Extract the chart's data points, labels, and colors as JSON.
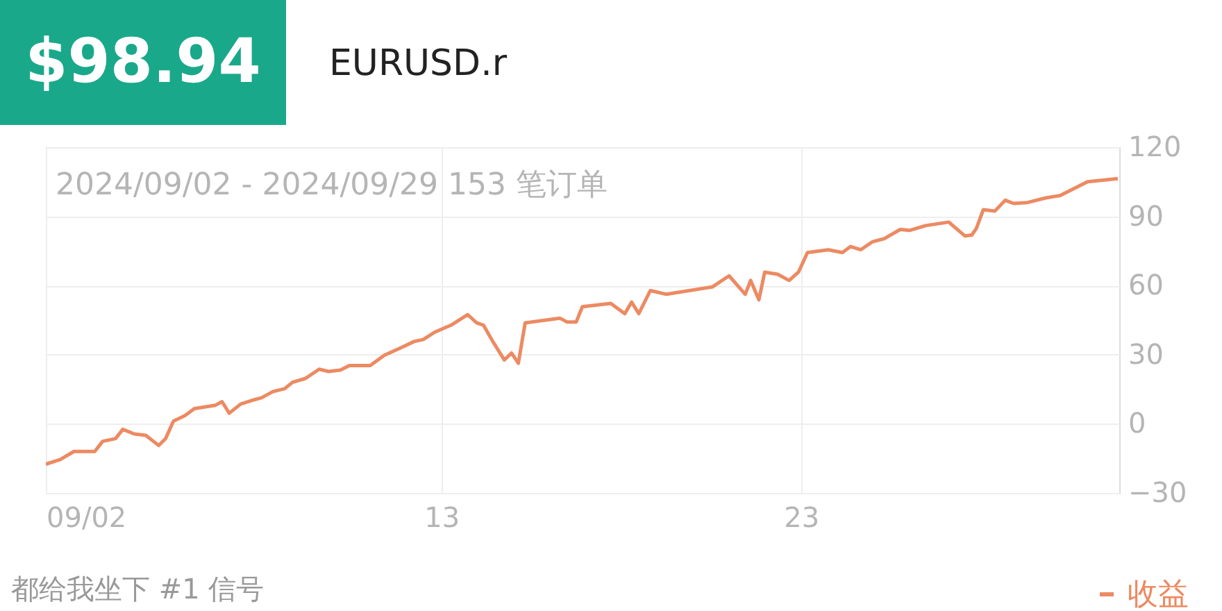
{
  "chart_data": {
    "type": "line",
    "title": "EURUSD.r",
    "annotations": [
      "$98.94",
      "2024/09/02 - 2024/09/29 153 笔订单",
      "都给我坐下 #1 信号"
    ],
    "x": [
      2.0,
      2.4,
      2.78,
      3.36,
      3.58,
      3.94,
      4.14,
      4.46,
      4.78,
      5.14,
      5.33,
      5.55,
      5.87,
      6.13,
      6.71,
      6.9,
      7.1,
      7.42,
      7.74,
      8.0,
      8.32,
      8.64,
      8.86,
      9.22,
      9.6,
      9.86,
      10.19,
      10.44,
      10.7,
      11.02,
      11.41,
      11.92,
      12.24,
      12.5,
      12.82,
      13.27,
      13.73,
      13.98,
      14.17,
      14.43,
      14.75,
      14.95,
      15.14,
      15.33,
      16.3,
      16.49,
      16.75,
      16.92,
      17.71,
      18.1,
      18.29,
      18.49,
      18.81,
      19.26,
      20.54,
      21.0,
      21.45,
      21.6,
      21.83,
      21.99,
      22.35,
      22.67,
      22.93,
      23.18,
      23.76,
      24.15,
      24.38,
      24.66,
      24.98,
      25.31,
      25.76,
      26.02,
      26.47,
      27.11,
      27.56,
      27.75,
      27.88,
      28.07,
      28.39,
      28.68,
      28.91,
      29.3,
      29.81,
      30.2,
      30.97,
      31.81
    ],
    "series": [
      {
        "name": "收益",
        "color": "#ec8a62",
        "values": [
          -17.5,
          -15.5,
          -12,
          -12,
          -7.6,
          -6.4,
          -2.4,
          -4.4,
          -5,
          -9.4,
          -6.4,
          1.2,
          3.6,
          6.6,
          8,
          9.6,
          4.6,
          8.6,
          10.2,
          11.3,
          14,
          15.2,
          18,
          19.7,
          23.7,
          22.7,
          23.3,
          25.3,
          25.3,
          25.3,
          29.7,
          33.3,
          35.7,
          36.6,
          39.8,
          42.8,
          47.4,
          43.8,
          42.8,
          35.7,
          27.7,
          30.7,
          26.3,
          43.8,
          45.8,
          44.2,
          44.2,
          50.8,
          52.2,
          47.8,
          52.8,
          47.8,
          57.8,
          56.2,
          59.4,
          64.2,
          56.2,
          62.2,
          53.8,
          65.8,
          64.9,
          62.2,
          65.8,
          74.3,
          75.5,
          74.3,
          76.9,
          75.5,
          78.9,
          80.3,
          84.3,
          83.9,
          86,
          87.5,
          81.5,
          81.9,
          84.9,
          92.9,
          92.3,
          97,
          95.6,
          96,
          98,
          99,
          105,
          106.4
        ]
      }
    ],
    "xlim": [
      2,
      31.85
    ],
    "xticks": [
      {
        "value": 2,
        "label": "09/02"
      },
      {
        "value": 13,
        "label": "13"
      },
      {
        "value": 23,
        "label": "23"
      }
    ],
    "ylim": [
      -30,
      120
    ],
    "yticks": [
      -30,
      0,
      30,
      60,
      90,
      120
    ],
    "grid": true,
    "legend": "bottom right"
  }
}
